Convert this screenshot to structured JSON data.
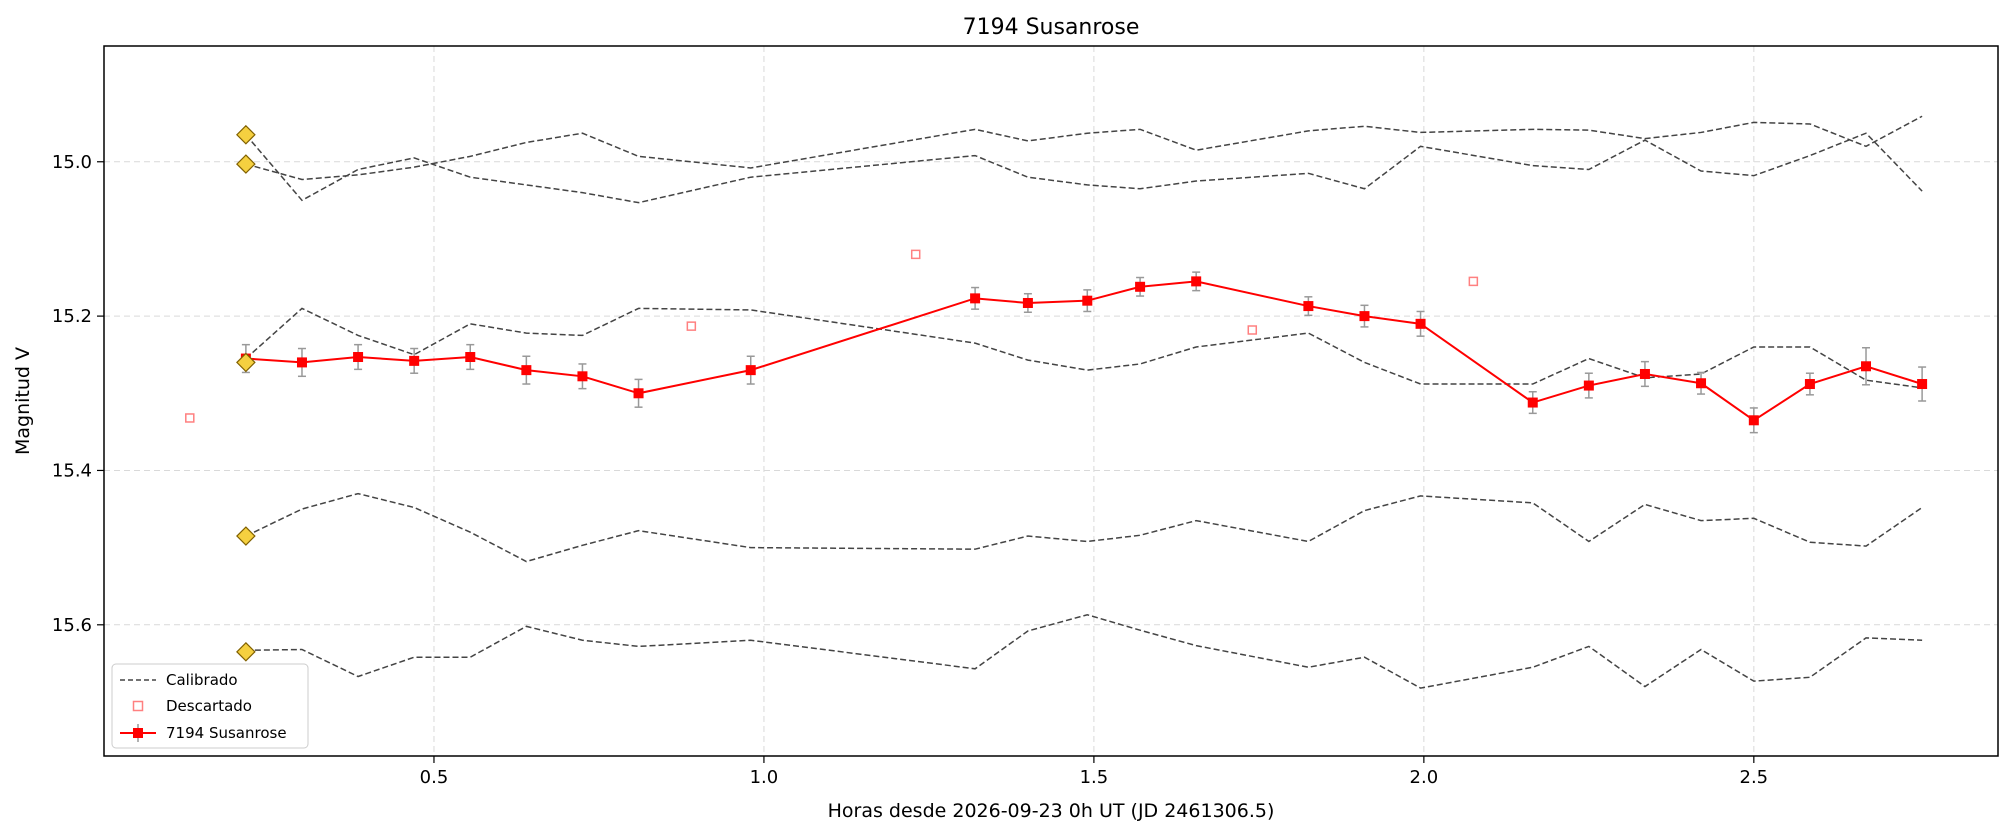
{
  "chart_data": {
    "type": "line",
    "title": "7194 Susanrose",
    "xlabel": "Horas desde 2026-09-23 0h UT (JD 2461306.5)",
    "ylabel": "Magnitud V",
    "xlim": [
      0.0,
      2.87
    ],
    "ylim": [
      15.77,
      14.85
    ],
    "y_inverted": true,
    "x_ticks": [
      0.5,
      1.0,
      1.5,
      2.0,
      2.5
    ],
    "x_tick_labels": [
      "0.5",
      "1.0",
      "1.5",
      "2.0",
      "2.5"
    ],
    "y_ticks": [
      15.0,
      15.2,
      15.4,
      15.6
    ],
    "y_tick_labels": [
      "15.0",
      "15.2",
      "15.4",
      "15.6"
    ],
    "grid": true,
    "legend_position": "lower-left",
    "legend": {
      "calibrated_label": "Calibrado",
      "discarded_label": "Descartado",
      "target_label": "7194 Susanrose"
    },
    "colors": {
      "target": "#ff0000",
      "calibrated": "#444444",
      "discarded": "#ff8080",
      "errorbar": "#999999",
      "diamond_fill": "#f5d040",
      "diamond_edge": "#806000"
    },
    "target": {
      "x": [
        0.215,
        0.3,
        0.385,
        0.47,
        0.555,
        0.64,
        0.725,
        0.81,
        0.98,
        1.32,
        1.4,
        1.49,
        1.57,
        1.655,
        1.825,
        1.91,
        1.995,
        2.165,
        2.25,
        2.335,
        2.42,
        2.5,
        2.585,
        2.67,
        2.755
      ],
      "y": [
        15.255,
        15.26,
        15.253,
        15.258,
        15.253,
        15.27,
        15.278,
        15.3,
        15.27,
        15.177,
        15.183,
        15.18,
        15.162,
        15.155,
        15.187,
        15.2,
        15.21,
        15.312,
        15.29,
        15.275,
        15.287,
        15.335,
        15.288,
        15.265,
        15.288
      ],
      "err": [
        0.018,
        0.018,
        0.016,
        0.016,
        0.016,
        0.018,
        0.016,
        0.018,
        0.018,
        0.014,
        0.012,
        0.014,
        0.012,
        0.012,
        0.012,
        0.014,
        0.016,
        0.014,
        0.016,
        0.016,
        0.014,
        0.016,
        0.014,
        0.024,
        0.022
      ]
    },
    "calibrated": [
      {
        "x": [
          0.215,
          0.3,
          0.385,
          0.47,
          0.555,
          0.64,
          0.725,
          0.81,
          0.98,
          1.32,
          1.4,
          1.49,
          1.57,
          1.655,
          1.825,
          1.91,
          1.995,
          2.165,
          2.25,
          2.335,
          2.42,
          2.5,
          2.585,
          2.67,
          2.755
        ],
        "y": [
          14.965,
          15.05,
          15.01,
          14.995,
          15.02,
          15.03,
          15.04,
          15.053,
          15.02,
          14.992,
          15.02,
          15.03,
          15.035,
          15.025,
          15.015,
          15.035,
          14.98,
          15.005,
          15.01,
          14.972,
          15.012,
          15.018,
          14.992,
          14.963,
          15.038
        ]
      },
      {
        "x": [
          0.215,
          0.3,
          0.385,
          0.47,
          0.555,
          0.64,
          0.725,
          0.81,
          0.98,
          1.32,
          1.4,
          1.49,
          1.57,
          1.655,
          1.825,
          1.91,
          1.995,
          2.165,
          2.25,
          2.335,
          2.42,
          2.5,
          2.585,
          2.67,
          2.755
        ],
        "y": [
          15.003,
          15.023,
          15.017,
          15.007,
          14.993,
          14.975,
          14.963,
          14.993,
          15.008,
          14.958,
          14.973,
          14.963,
          14.958,
          14.985,
          14.96,
          14.954,
          14.962,
          14.958,
          14.959,
          14.97,
          14.962,
          14.949,
          14.951,
          14.98,
          14.941
        ]
      },
      {
        "x": [
          0.215,
          0.3,
          0.385,
          0.47,
          0.555,
          0.64,
          0.725,
          0.81,
          0.98,
          1.32,
          1.4,
          1.49,
          1.57,
          1.655,
          1.825,
          1.91,
          1.995,
          2.165,
          2.25,
          2.335,
          2.42,
          2.5,
          2.585,
          2.67,
          2.755
        ],
        "y": [
          15.255,
          15.19,
          15.225,
          15.25,
          15.21,
          15.222,
          15.225,
          15.19,
          15.192,
          15.235,
          15.257,
          15.27,
          15.262,
          15.24,
          15.222,
          15.26,
          15.288,
          15.288,
          15.255,
          15.28,
          15.275,
          15.24,
          15.24,
          15.283,
          15.293
        ]
      },
      {
        "x": [
          0.215,
          0.3,
          0.385,
          0.47,
          0.555,
          0.64,
          0.725,
          0.81,
          0.98,
          1.32,
          1.4,
          1.49,
          1.57,
          1.655,
          1.825,
          1.91,
          1.995,
          2.165,
          2.25,
          2.335,
          2.42,
          2.5,
          2.585,
          2.67,
          2.755
        ],
        "y": [
          15.485,
          15.45,
          15.43,
          15.448,
          15.48,
          15.518,
          15.497,
          15.478,
          15.5,
          15.502,
          15.485,
          15.492,
          15.484,
          15.465,
          15.492,
          15.452,
          15.433,
          15.442,
          15.492,
          15.444,
          15.465,
          15.462,
          15.493,
          15.498,
          15.448
        ]
      },
      {
        "x": [
          0.215,
          0.3,
          0.385,
          0.47,
          0.555,
          0.64,
          0.725,
          0.81,
          0.98,
          1.32,
          1.4,
          1.49,
          1.57,
          1.655,
          1.825,
          1.91,
          1.995,
          2.165,
          2.25,
          2.335,
          2.42,
          2.5,
          2.585,
          2.67,
          2.755
        ],
        "y": [
          15.633,
          15.632,
          15.667,
          15.642,
          15.642,
          15.602,
          15.62,
          15.628,
          15.62,
          15.657,
          15.608,
          15.587,
          15.607,
          15.627,
          15.655,
          15.642,
          15.682,
          15.655,
          15.628,
          15.68,
          15.632,
          15.673,
          15.668,
          15.617,
          15.62
        ]
      }
    ],
    "discarded": {
      "x": [
        0.13,
        0.89,
        1.23,
        1.74,
        2.075
      ],
      "y": [
        15.332,
        15.213,
        15.12,
        15.218,
        15.155
      ]
    },
    "comparison_stars": {
      "x": [
        0.215,
        0.215,
        0.215,
        0.215,
        0.215
      ],
      "y": [
        14.965,
        15.003,
        15.26,
        15.485,
        15.635
      ]
    }
  }
}
